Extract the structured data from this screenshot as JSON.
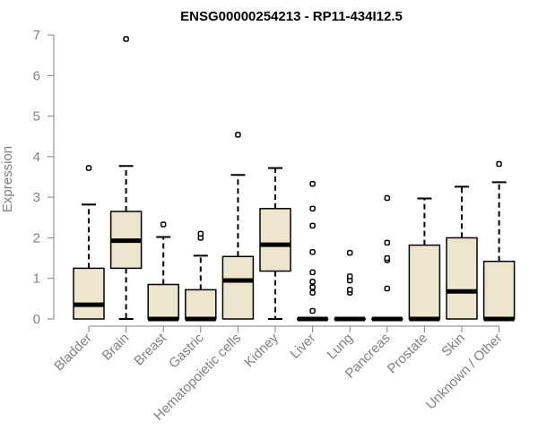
{
  "chart_data": {
    "type": "boxplot",
    "title": "ENSG00000254213 - RP11-434I12.5",
    "xlabel": "",
    "ylabel": "Expression",
    "ylim": [
      0,
      7
    ],
    "yticks": [
      0,
      1,
      2,
      3,
      4,
      5,
      6,
      7
    ],
    "grid": false,
    "box_fill": "#ede6cc",
    "categories": [
      "Bladder",
      "Brain",
      "Breast",
      "Gastric",
      "Hematopoietic cells",
      "Kidney",
      "Liver",
      "Lung",
      "Pancreas",
      "Prostate",
      "Skin",
      "Unknown / Other"
    ],
    "boxes": [
      {
        "q1": 0.0,
        "median": 0.35,
        "q3": 1.25,
        "whisker_low": 0.0,
        "whisker_high": 2.82,
        "outliers": [
          3.72
        ]
      },
      {
        "q1": 1.25,
        "median": 1.93,
        "q3": 2.65,
        "whisker_low": 0.0,
        "whisker_high": 3.77,
        "outliers": [
          6.9
        ]
      },
      {
        "q1": 0.0,
        "median": 0.0,
        "q3": 0.85,
        "whisker_low": 0.0,
        "whisker_high": 2.02,
        "outliers": [
          2.33
        ]
      },
      {
        "q1": 0.0,
        "median": 0.0,
        "q3": 0.72,
        "whisker_low": 0.0,
        "whisker_high": 1.56,
        "outliers": [
          2.0,
          2.1
        ]
      },
      {
        "q1": 0.0,
        "median": 0.95,
        "q3": 1.54,
        "whisker_low": 0.0,
        "whisker_high": 3.55,
        "outliers": [
          4.54
        ]
      },
      {
        "q1": 1.18,
        "median": 1.83,
        "q3": 2.72,
        "whisker_low": 0.0,
        "whisker_high": 3.72,
        "outliers": []
      },
      {
        "q1": 0.0,
        "median": 0.0,
        "q3": 0.0,
        "whisker_low": 0.0,
        "whisker_high": 0.0,
        "outliers": [
          0.2,
          0.65,
          0.78,
          0.92,
          1.15,
          1.65,
          2.3,
          2.72,
          3.33
        ]
      },
      {
        "q1": 0.0,
        "median": 0.0,
        "q3": 0.0,
        "whisker_low": 0.0,
        "whisker_high": 0.0,
        "outliers": [
          0.65,
          0.72,
          0.95,
          1.05,
          1.63
        ]
      },
      {
        "q1": 0.0,
        "median": 0.0,
        "q3": 0.0,
        "whisker_low": 0.0,
        "whisker_high": 0.0,
        "outliers": [
          0.75,
          1.45,
          1.5,
          1.88,
          2.98
        ]
      },
      {
        "q1": 0.0,
        "median": 0.0,
        "q3": 1.82,
        "whisker_low": 0.0,
        "whisker_high": 2.97,
        "outliers": []
      },
      {
        "q1": 0.0,
        "median": 0.68,
        "q3": 2.0,
        "whisker_low": 0.0,
        "whisker_high": 3.26,
        "outliers": []
      },
      {
        "q1": 0.0,
        "median": 0.0,
        "q3": 1.42,
        "whisker_low": 0.0,
        "whisker_high": 3.37,
        "outliers": [
          3.82
        ]
      }
    ]
  }
}
